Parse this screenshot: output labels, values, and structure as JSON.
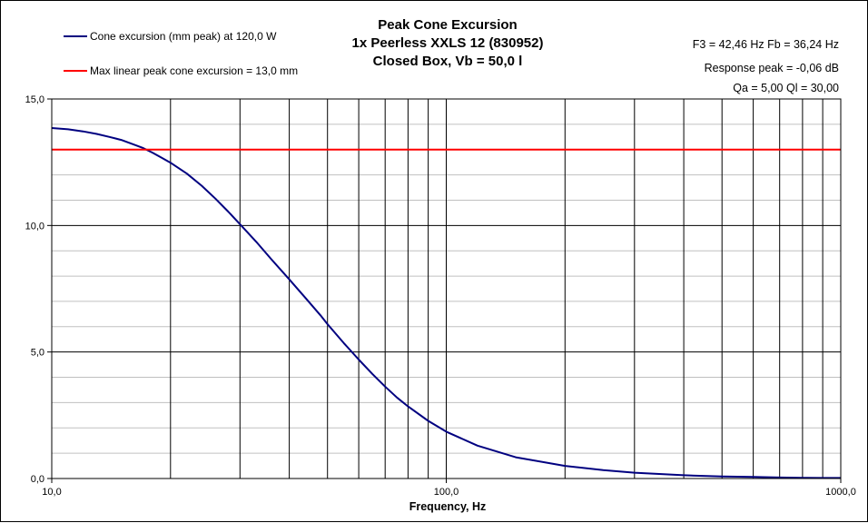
{
  "chart_data": {
    "type": "line",
    "title": [
      "Peak Cone Excursion",
      "1x Peerless XXLS 12 (830952)",
      "Closed Box, Vb = 50,0 l"
    ],
    "xlabel": "Frequency, Hz",
    "ylabel": "",
    "xscale": "log",
    "xlim": [
      10,
      1000
    ],
    "ylim": [
      0,
      15
    ],
    "grid": true,
    "legend_position": "top-left",
    "x_ticks": [
      10,
      100,
      1000
    ],
    "x_tick_labels": [
      "10,0",
      "100,0",
      "1000,0"
    ],
    "y_ticks": [
      0,
      5,
      10,
      15
    ],
    "y_tick_labels": [
      "0,0",
      "5,0",
      "10,0",
      "15,0"
    ],
    "annotations": [
      "F3 = 42,46 Hz  Fb = 36,24 Hz",
      "Response  peak = -0,06 dB",
      "Qa = 5,00  Ql = 30,00"
    ],
    "series": [
      {
        "name": "Cone excursion (mm peak) at 120,0 W",
        "color": "#000080",
        "x": [
          10,
          11,
          12,
          13,
          14,
          15,
          16,
          17,
          18,
          19,
          20,
          22,
          24,
          26,
          28,
          30,
          33,
          36,
          40,
          44,
          48,
          50,
          55,
          60,
          65,
          70,
          75,
          80,
          90,
          100,
          120,
          150,
          200,
          250,
          300,
          400,
          500,
          600,
          700,
          800,
          900,
          1000
        ],
        "y": [
          13.85,
          13.8,
          13.72,
          13.62,
          13.5,
          13.38,
          13.22,
          13.07,
          12.88,
          12.68,
          12.48,
          12.05,
          11.57,
          11.06,
          10.55,
          10.05,
          9.35,
          8.67,
          7.87,
          7.13,
          6.45,
          6.1,
          5.35,
          4.7,
          4.13,
          3.63,
          3.2,
          2.85,
          2.28,
          1.85,
          1.3,
          0.84,
          0.5,
          0.33,
          0.23,
          0.13,
          0.08,
          0.06,
          0.04,
          0.03,
          0.02,
          0.02
        ]
      },
      {
        "name": "Max linear peak cone excursion = 13,0 mm",
        "color": "#ff0000",
        "x": [
          10,
          1000
        ],
        "y": [
          13.0,
          13.0
        ]
      }
    ]
  }
}
